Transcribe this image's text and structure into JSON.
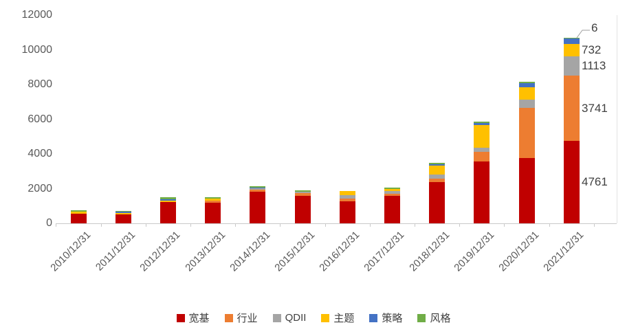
{
  "chart_data": {
    "type": "bar",
    "stacked": true,
    "title": "",
    "xlabel": "",
    "ylabel": "",
    "grid": false,
    "legend_position": "bottom",
    "categories": [
      "2010/12/31",
      "2011/12/31",
      "2012/12/31",
      "2013/12/31",
      "2014/12/31",
      "2015/12/31",
      "2016/12/31",
      "2017/12/31",
      "2018/12/31",
      "2019/12/31",
      "2020/12/31",
      "2021/12/31"
    ],
    "series": [
      {
        "name": "宽基",
        "color": "#c00000",
        "values": [
          555,
          520,
          1230,
          1190,
          1820,
          1585,
          1280,
          1585,
          2375,
          3565,
          3760,
          4761
        ]
      },
      {
        "name": "行业",
        "color": "#ed7d31",
        "values": [
          0,
          0,
          0,
          120,
          120,
          160,
          155,
          120,
          200,
          555,
          2890,
          3741
        ]
      },
      {
        "name": "QDII",
        "color": "#a5a5a5",
        "values": [
          0,
          0,
          0,
          0,
          80,
          35,
          195,
          155,
          240,
          240,
          475,
          1113
        ]
      },
      {
        "name": "主题",
        "color": "#ffc000",
        "values": [
          120,
          80,
          80,
          120,
          0,
          0,
          230,
          120,
          515,
          1305,
          715,
          732
        ]
      },
      {
        "name": "策略",
        "color": "#4472c4",
        "values": [
          0,
          60,
          35,
          0,
          40,
          0,
          0,
          0,
          80,
          120,
          240,
          300
        ]
      },
      {
        "name": "风格",
        "color": "#70ad47",
        "values": [
          40,
          50,
          120,
          75,
          40,
          80,
          0,
          80,
          80,
          80,
          80,
          6
        ]
      }
    ],
    "y_axis": {
      "min": 0,
      "max": 12000,
      "step": 2000,
      "ticks": [
        "0",
        "2000",
        "4000",
        "6000",
        "8000",
        "10000",
        "12000"
      ]
    },
    "data_labels": {
      "category": "2021/12/31",
      "labels": [
        {
          "series": "风格",
          "text": "6",
          "callout": true
        },
        {
          "series": "主题",
          "text": "732",
          "callout": false
        },
        {
          "series": "QDII",
          "text": "1113",
          "callout": false
        },
        {
          "series": "行业",
          "text": "3741",
          "callout": false
        },
        {
          "series": "宽基",
          "text": "4761",
          "callout": false
        }
      ]
    },
    "legend": [
      "宽基",
      "行业",
      "QDII",
      "主题",
      "策略",
      "风格"
    ]
  }
}
